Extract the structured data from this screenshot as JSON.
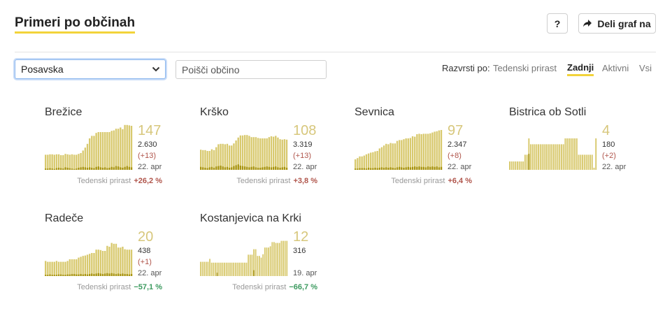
{
  "header": {
    "title": "Primeri po občinah",
    "help_label": "?",
    "share_label": "Deli graf na"
  },
  "filters": {
    "region_selected": "Posavska",
    "search_placeholder": "Poišči občino"
  },
  "sort": {
    "label": "Razvrsti po:",
    "options": [
      "Tedenski prirast",
      "Zadnji",
      "Aktivni",
      "Vsi"
    ],
    "active": "Zadnji"
  },
  "colors": {
    "bar_light": "#d8c96e",
    "bar_dark": "#a89410",
    "accent": "#f2d33a",
    "increase": "#b0554b",
    "decrease": "#3c9a5f"
  },
  "municipalities": [
    {
      "name": "Brežice",
      "active": "147",
      "total": "2.630",
      "change": "(+13)",
      "date": "22. apr",
      "weekly_label": "Tedenski prirast",
      "weekly_value": "+26,2 %",
      "trend": "up",
      "bars": [
        36,
        36,
        37,
        37,
        36,
        37,
        37,
        35,
        35,
        38,
        37,
        36,
        37,
        36,
        36,
        38,
        40,
        46,
        53,
        62,
        75,
        81,
        81,
        88,
        90,
        90,
        90,
        90,
        90,
        90,
        93,
        94,
        98,
        98,
        101,
        97,
        107,
        107,
        106,
        105
      ],
      "new_cases": [
        3,
        3,
        4,
        3,
        2,
        4,
        5,
        4,
        3,
        6,
        5,
        4,
        3,
        2,
        3,
        5,
        6,
        7,
        6,
        5,
        6,
        5,
        4,
        7,
        8,
        6,
        5,
        6,
        4,
        5,
        7,
        6,
        9,
        8,
        6,
        5,
        7,
        9,
        7,
        6
      ]
    },
    {
      "name": "Krško",
      "active": "108",
      "total": "3.319",
      "change": "(+13)",
      "date": "22. apr",
      "weekly_label": "Tedenski prirast",
      "weekly_value": "+3,8 %",
      "trend": "up",
      "bars": [
        48,
        47,
        47,
        45,
        45,
        49,
        47,
        54,
        61,
        62,
        62,
        61,
        62,
        58,
        58,
        63,
        70,
        77,
        82,
        82,
        83,
        83,
        81,
        78,
        78,
        78,
        76,
        75,
        75,
        75,
        75,
        78,
        80,
        79,
        81,
        77,
        73,
        72,
        73,
        72
      ],
      "new_cases": [
        7,
        6,
        5,
        4,
        6,
        7,
        5,
        8,
        9,
        10,
        8,
        6,
        7,
        5,
        6,
        9,
        11,
        13,
        10,
        9,
        8,
        7,
        6,
        7,
        8,
        6,
        5,
        5,
        6,
        7,
        8,
        7,
        6,
        7,
        8,
        6,
        5,
        6,
        7,
        5
      ]
    },
    {
      "name": "Sevnica",
      "active": "97",
      "total": "2.347",
      "change": "(+8)",
      "date": "22. apr",
      "weekly_label": "Tedenski prirast",
      "weekly_value": "+6,4 %",
      "trend": "up",
      "bars": [
        25,
        28,
        32,
        32,
        34,
        37,
        39,
        41,
        42,
        44,
        45,
        51,
        54,
        58,
        62,
        61,
        64,
        63,
        63,
        69,
        71,
        71,
        73,
        75,
        75,
        76,
        80,
        79,
        85,
        86,
        85,
        86,
        86,
        86,
        87,
        89,
        91,
        92,
        94,
        95
      ],
      "new_cases": [
        3,
        3,
        4,
        4,
        4,
        3,
        5,
        4,
        4,
        5,
        4,
        5,
        6,
        5,
        6,
        5,
        6,
        5,
        4,
        6,
        7,
        6,
        5,
        6,
        7,
        6,
        7,
        8,
        7,
        8,
        7,
        7,
        6,
        8,
        7,
        8,
        7,
        8,
        6,
        7
      ]
    },
    {
      "name": "Bistrica ob Sotli",
      "active": "4",
      "total": "180",
      "change": "(+2)",
      "date": "22. apr",
      "weekly_label": "",
      "weekly_value": "",
      "trend": "none",
      "bars": [
        20,
        20,
        20,
        20,
        20,
        20,
        20,
        20,
        36,
        36,
        75,
        61,
        61,
        61,
        61,
        61,
        61,
        61,
        61,
        61,
        61,
        61,
        61,
        61,
        61,
        61,
        61,
        61,
        61,
        75,
        75,
        75,
        75,
        75,
        75,
        75,
        36,
        36,
        36,
        36,
        36,
        36,
        36,
        36,
        5,
        75
      ],
      "new_cases": [
        0,
        0,
        0,
        0,
        0,
        0,
        0,
        0,
        0,
        0,
        38,
        0,
        0,
        0,
        0,
        0,
        0,
        0,
        0,
        0,
        0,
        0,
        0,
        0,
        0,
        0,
        0,
        0,
        0,
        0,
        0,
        0,
        0,
        0,
        0,
        0,
        0,
        0,
        0,
        0,
        0,
        0,
        0,
        0,
        0,
        0
      ]
    },
    {
      "name": "Radeče",
      "active": "20",
      "total": "438",
      "change": "(+1)",
      "date": "22. apr",
      "weekly_label": "Tedenski prirast",
      "weekly_value": "−57,1 %",
      "trend": "down",
      "bars": [
        36,
        34,
        34,
        34,
        34,
        36,
        34,
        34,
        34,
        34,
        36,
        40,
        40,
        40,
        40,
        44,
        46,
        48,
        49,
        51,
        53,
        55,
        55,
        63,
        63,
        62,
        60,
        60,
        72,
        70,
        79,
        77,
        77,
        68,
        68,
        70,
        64,
        63,
        63,
        63
      ],
      "new_cases": [
        3,
        3,
        4,
        3,
        3,
        3,
        4,
        4,
        3,
        3,
        4,
        4,
        5,
        5,
        4,
        4,
        5,
        4,
        5,
        4,
        5,
        6,
        5,
        6,
        7,
        6,
        5,
        6,
        7,
        6,
        7,
        6,
        5,
        6,
        5,
        6,
        5,
        5,
        4,
        5
      ]
    },
    {
      "name": "Kostanjevica na Krki",
      "active": "12",
      "total": "316",
      "change": "",
      "date": "19. apr",
      "weekly_label": "Tedenski prirast",
      "weekly_value": "−66,7 %",
      "trend": "down",
      "bars": [
        34,
        34,
        34,
        34,
        34,
        41,
        32,
        32,
        32,
        32,
        32,
        32,
        32,
        32,
        32,
        32,
        32,
        32,
        32,
        32,
        32,
        32,
        32,
        32,
        32,
        32,
        51,
        51,
        51,
        64,
        64,
        48,
        48,
        44,
        52,
        68,
        68,
        68,
        71,
        81,
        81,
        79,
        79,
        79,
        84,
        84,
        84,
        84
      ],
      "new_cases": [
        0,
        0,
        0,
        0,
        0,
        0,
        0,
        0,
        0,
        8,
        0,
        0,
        0,
        0,
        0,
        0,
        0,
        0,
        0,
        0,
        0,
        0,
        0,
        0,
        0,
        0,
        0,
        0,
        0,
        14,
        0,
        0,
        0,
        0,
        0,
        0,
        0,
        0,
        0,
        0,
        0,
        0,
        0,
        0,
        0,
        0,
        0,
        0
      ]
    }
  ]
}
